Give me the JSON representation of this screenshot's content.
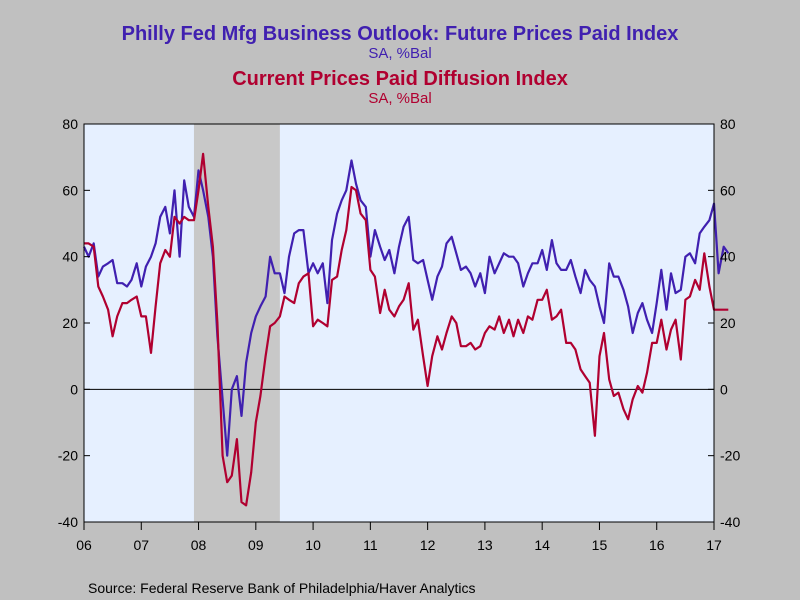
{
  "chart_data": {
    "type": "line",
    "title": "Philly Fed Mfg Business Outlook: Future Prices Paid Index",
    "subtitle": "SA, %Bal",
    "title2": "Current Prices Paid Diffusion Index",
    "subtitle2": "SA, %Bal",
    "source": "Source:  Federal Reserve Bank of Philadelphia/Haver Analytics",
    "ylim": [
      -40,
      80
    ],
    "yticks": [
      -40,
      -20,
      0,
      20,
      40,
      60,
      80
    ],
    "ytick_labels": [
      "-40",
      "-20",
      "0",
      "20",
      "40",
      "60",
      "80"
    ],
    "xlim": [
      2006.0,
      2017.0
    ],
    "xticks": [
      2006,
      2007,
      2008,
      2009,
      2010,
      2011,
      2012,
      2013,
      2014,
      2015,
      2016,
      2017
    ],
    "xtick_labels": [
      "06",
      "07",
      "08",
      "09",
      "10",
      "11",
      "12",
      "13",
      "14",
      "15",
      "16",
      "17"
    ],
    "recession": [
      2007.92,
      2009.42
    ],
    "grid": false,
    "colors": {
      "background": "#C0C0C0",
      "plot_area": "#E6F0FF",
      "recession": "#C8C8C8",
      "future": "#4020B0",
      "current": "#B00030",
      "zero_line": "#000000"
    },
    "series": [
      {
        "name": "Philly Fed Mfg Business Outlook: Future Prices Paid Index",
        "color": "#4020B0",
        "points": [
          [
            2006.0,
            43
          ],
          [
            2006.08,
            40
          ],
          [
            2006.17,
            44
          ],
          [
            2006.25,
            34
          ],
          [
            2006.33,
            37
          ],
          [
            2006.42,
            38
          ],
          [
            2006.5,
            39
          ],
          [
            2006.58,
            32
          ],
          [
            2006.67,
            32
          ],
          [
            2006.75,
            31
          ],
          [
            2006.83,
            33
          ],
          [
            2006.92,
            38
          ],
          [
            2007.0,
            31
          ],
          [
            2007.08,
            37
          ],
          [
            2007.17,
            40
          ],
          [
            2007.25,
            44
          ],
          [
            2007.33,
            52
          ],
          [
            2007.42,
            55
          ],
          [
            2007.5,
            47
          ],
          [
            2007.58,
            60
          ],
          [
            2007.67,
            40
          ],
          [
            2007.75,
            63
          ],
          [
            2007.83,
            55
          ],
          [
            2007.92,
            52
          ],
          [
            2008.0,
            66
          ],
          [
            2008.08,
            60
          ],
          [
            2008.17,
            52
          ],
          [
            2008.25,
            40
          ],
          [
            2008.33,
            16
          ],
          [
            2008.42,
            -3
          ],
          [
            2008.5,
            -20
          ],
          [
            2008.58,
            0
          ],
          [
            2008.67,
            4
          ],
          [
            2008.75,
            -8
          ],
          [
            2008.83,
            8
          ],
          [
            2008.92,
            17
          ],
          [
            2009.0,
            22
          ],
          [
            2009.08,
            25
          ],
          [
            2009.17,
            28
          ],
          [
            2009.25,
            40
          ],
          [
            2009.33,
            35
          ],
          [
            2009.42,
            35
          ],
          [
            2009.5,
            29
          ],
          [
            2009.58,
            40
          ],
          [
            2009.67,
            47
          ],
          [
            2009.75,
            48
          ],
          [
            2009.83,
            48
          ],
          [
            2009.92,
            35
          ],
          [
            2010.0,
            38
          ],
          [
            2010.08,
            35
          ],
          [
            2010.17,
            38
          ],
          [
            2010.25,
            26
          ],
          [
            2010.33,
            45
          ],
          [
            2010.42,
            53
          ],
          [
            2010.5,
            57
          ],
          [
            2010.58,
            60
          ],
          [
            2010.67,
            69
          ],
          [
            2010.75,
            62
          ],
          [
            2010.83,
            57
          ],
          [
            2010.92,
            55
          ],
          [
            2011.0,
            40
          ],
          [
            2011.08,
            48
          ],
          [
            2011.17,
            43
          ],
          [
            2011.25,
            39
          ],
          [
            2011.33,
            42
          ],
          [
            2011.42,
            35
          ],
          [
            2011.5,
            43
          ],
          [
            2011.58,
            49
          ],
          [
            2011.67,
            52
          ],
          [
            2011.75,
            39
          ],
          [
            2011.83,
            38
          ],
          [
            2011.92,
            39
          ],
          [
            2012.0,
            33
          ],
          [
            2012.08,
            27
          ],
          [
            2012.17,
            34
          ],
          [
            2012.25,
            37
          ],
          [
            2012.33,
            44
          ],
          [
            2012.42,
            46
          ],
          [
            2012.5,
            41
          ],
          [
            2012.58,
            36
          ],
          [
            2012.67,
            37
          ],
          [
            2012.75,
            35
          ],
          [
            2012.83,
            31
          ],
          [
            2012.92,
            35
          ],
          [
            2013.0,
            29
          ],
          [
            2013.08,
            40
          ],
          [
            2013.17,
            35
          ],
          [
            2013.25,
            38
          ],
          [
            2013.33,
            41
          ],
          [
            2013.42,
            40
          ],
          [
            2013.5,
            40
          ],
          [
            2013.58,
            38
          ],
          [
            2013.67,
            31
          ],
          [
            2013.75,
            35
          ],
          [
            2013.83,
            38
          ],
          [
            2013.92,
            38
          ],
          [
            2014.0,
            42
          ],
          [
            2014.08,
            36
          ],
          [
            2014.17,
            45
          ],
          [
            2014.25,
            38
          ],
          [
            2014.33,
            36
          ],
          [
            2014.42,
            36
          ],
          [
            2014.5,
            39
          ],
          [
            2014.58,
            34
          ],
          [
            2014.67,
            29
          ],
          [
            2014.75,
            36
          ],
          [
            2014.83,
            33
          ],
          [
            2014.92,
            31
          ],
          [
            2015.0,
            25
          ],
          [
            2015.08,
            20
          ],
          [
            2015.17,
            38
          ],
          [
            2015.25,
            34
          ],
          [
            2015.33,
            34
          ],
          [
            2015.42,
            30
          ],
          [
            2015.5,
            25
          ],
          [
            2015.58,
            17
          ],
          [
            2015.67,
            23
          ],
          [
            2015.75,
            26
          ],
          [
            2015.83,
            21
          ],
          [
            2015.92,
            17
          ],
          [
            2016.0,
            26
          ],
          [
            2016.08,
            36
          ],
          [
            2016.17,
            24
          ],
          [
            2016.25,
            35
          ],
          [
            2016.33,
            29
          ],
          [
            2016.42,
            30
          ],
          [
            2016.5,
            40
          ],
          [
            2016.58,
            41
          ],
          [
            2016.67,
            38
          ],
          [
            2016.75,
            47
          ],
          [
            2016.83,
            49
          ],
          [
            2016.92,
            51
          ],
          [
            2017.0,
            56
          ],
          [
            2017.08,
            35
          ],
          [
            2017.17,
            43
          ],
          [
            2017.25,
            41
          ]
        ]
      },
      {
        "name": "Current Prices Paid Diffusion Index",
        "color": "#B00030",
        "points": [
          [
            2006.0,
            44
          ],
          [
            2006.08,
            44
          ],
          [
            2006.17,
            43
          ],
          [
            2006.25,
            31
          ],
          [
            2006.33,
            28
          ],
          [
            2006.42,
            24
          ],
          [
            2006.5,
            16
          ],
          [
            2006.58,
            22
          ],
          [
            2006.67,
            26
          ],
          [
            2006.75,
            26
          ],
          [
            2006.83,
            27
          ],
          [
            2006.92,
            28
          ],
          [
            2007.0,
            22
          ],
          [
            2007.08,
            22
          ],
          [
            2007.17,
            11
          ],
          [
            2007.25,
            25
          ],
          [
            2007.33,
            38
          ],
          [
            2007.42,
            42
          ],
          [
            2007.5,
            40
          ],
          [
            2007.58,
            52
          ],
          [
            2007.67,
            50
          ],
          [
            2007.75,
            52
          ],
          [
            2007.83,
            51
          ],
          [
            2007.92,
            51
          ],
          [
            2008.0,
            60
          ],
          [
            2008.08,
            71
          ],
          [
            2008.17,
            55
          ],
          [
            2008.25,
            43
          ],
          [
            2008.33,
            20
          ],
          [
            2008.42,
            -20
          ],
          [
            2008.5,
            -28
          ],
          [
            2008.58,
            -26
          ],
          [
            2008.67,
            -15
          ],
          [
            2008.75,
            -34
          ],
          [
            2008.83,
            -35
          ],
          [
            2008.92,
            -25
          ],
          [
            2009.0,
            -10
          ],
          [
            2009.08,
            -2
          ],
          [
            2009.17,
            10
          ],
          [
            2009.25,
            19
          ],
          [
            2009.33,
            20
          ],
          [
            2009.42,
            22
          ],
          [
            2009.5,
            28
          ],
          [
            2009.58,
            27
          ],
          [
            2009.67,
            26
          ],
          [
            2009.75,
            32
          ],
          [
            2009.83,
            34
          ],
          [
            2009.92,
            35
          ],
          [
            2010.0,
            19
          ],
          [
            2010.08,
            21
          ],
          [
            2010.17,
            20
          ],
          [
            2010.25,
            19
          ],
          [
            2010.33,
            33
          ],
          [
            2010.42,
            34
          ],
          [
            2010.5,
            42
          ],
          [
            2010.58,
            48
          ],
          [
            2010.67,
            61
          ],
          [
            2010.75,
            60
          ],
          [
            2010.83,
            53
          ],
          [
            2010.92,
            51
          ],
          [
            2011.0,
            36
          ],
          [
            2011.08,
            34
          ],
          [
            2011.17,
            23
          ],
          [
            2011.25,
            30
          ],
          [
            2011.33,
            24
          ],
          [
            2011.42,
            22
          ],
          [
            2011.5,
            25
          ],
          [
            2011.58,
            27
          ],
          [
            2011.67,
            32
          ],
          [
            2011.75,
            18
          ],
          [
            2011.83,
            21
          ],
          [
            2011.92,
            10
          ],
          [
            2012.0,
            1
          ],
          [
            2012.08,
            10
          ],
          [
            2012.17,
            16
          ],
          [
            2012.25,
            12
          ],
          [
            2012.33,
            17
          ],
          [
            2012.42,
            22
          ],
          [
            2012.5,
            20
          ],
          [
            2012.58,
            13
          ],
          [
            2012.67,
            13
          ],
          [
            2012.75,
            14
          ],
          [
            2012.83,
            12
          ],
          [
            2012.92,
            13
          ],
          [
            2013.0,
            17
          ],
          [
            2013.08,
            19
          ],
          [
            2013.17,
            18
          ],
          [
            2013.25,
            22
          ],
          [
            2013.33,
            17
          ],
          [
            2013.42,
            21
          ],
          [
            2013.5,
            16
          ],
          [
            2013.58,
            21
          ],
          [
            2013.67,
            17
          ],
          [
            2013.75,
            22
          ],
          [
            2013.83,
            21
          ],
          [
            2013.92,
            27
          ],
          [
            2014.0,
            27
          ],
          [
            2014.08,
            30
          ],
          [
            2014.17,
            21
          ],
          [
            2014.25,
            22
          ],
          [
            2014.33,
            24
          ],
          [
            2014.42,
            14
          ],
          [
            2014.5,
            14
          ],
          [
            2014.58,
            12
          ],
          [
            2014.67,
            6
          ],
          [
            2014.75,
            4
          ],
          [
            2014.83,
            2
          ],
          [
            2014.92,
            -14
          ],
          [
            2015.0,
            10
          ],
          [
            2015.08,
            17
          ],
          [
            2015.17,
            3
          ],
          [
            2015.25,
            -2
          ],
          [
            2015.33,
            -1
          ],
          [
            2015.42,
            -6
          ],
          [
            2015.5,
            -9
          ],
          [
            2015.58,
            -3
          ],
          [
            2015.67,
            1
          ],
          [
            2015.75,
            -1
          ],
          [
            2015.83,
            5
          ],
          [
            2015.92,
            14
          ],
          [
            2016.0,
            14
          ],
          [
            2016.08,
            21
          ],
          [
            2016.17,
            12
          ],
          [
            2016.25,
            18
          ],
          [
            2016.33,
            21
          ],
          [
            2016.42,
            9
          ],
          [
            2016.5,
            27
          ],
          [
            2016.58,
            28
          ],
          [
            2016.67,
            33
          ],
          [
            2016.75,
            30
          ],
          [
            2016.83,
            41
          ],
          [
            2016.92,
            31
          ],
          [
            2017.0,
            24
          ],
          [
            2017.08,
            24
          ],
          [
            2017.17,
            24
          ],
          [
            2017.25,
            24
          ]
        ]
      }
    ]
  }
}
